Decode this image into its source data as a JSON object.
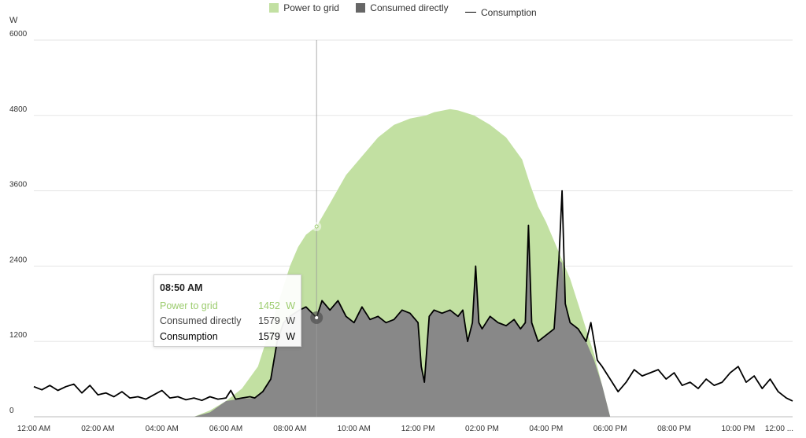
{
  "chart_data": {
    "type": "area",
    "ylabel": "W",
    "ylim": [
      0,
      6000
    ],
    "yticks": [
      0,
      1200,
      2400,
      3600,
      4800,
      6000
    ],
    "xticks": [
      "12:00 AM",
      "02:00 AM",
      "04:00 AM",
      "06:00 AM",
      "08:00 AM",
      "10:00 AM",
      "12:00 PM",
      "02:00 PM",
      "04:00 PM",
      "06:00 PM",
      "08:00 PM",
      "10:00 PM",
      "12:00 ..."
    ],
    "grid": "horizontal",
    "legend_position": "top-center",
    "legend": [
      {
        "label": "Power to grid",
        "kind": "area",
        "color": "#c2e0a2"
      },
      {
        "label": "Consumed directly",
        "kind": "area",
        "color": "#666666"
      },
      {
        "label": "Consumption",
        "kind": "line",
        "color": "#000000"
      }
    ],
    "x_hours_range": [
      0,
      23.7
    ],
    "series": [
      {
        "name": "Power to grid",
        "stacked_total": true,
        "points": [
          [
            5.0,
            0
          ],
          [
            5.5,
            100
          ],
          [
            6.0,
            250
          ],
          [
            6.5,
            450
          ],
          [
            7.0,
            800
          ],
          [
            7.25,
            1200
          ],
          [
            7.5,
            1600
          ],
          [
            7.75,
            2000
          ],
          [
            8.0,
            2400
          ],
          [
            8.25,
            2700
          ],
          [
            8.5,
            2900
          ],
          [
            8.83,
            3031
          ],
          [
            9.25,
            3400
          ],
          [
            9.75,
            3850
          ],
          [
            10.25,
            4150
          ],
          [
            10.75,
            4450
          ],
          [
            11.25,
            4650
          ],
          [
            11.75,
            4750
          ],
          [
            12.25,
            4800
          ],
          [
            12.5,
            4850
          ],
          [
            13.0,
            4900
          ],
          [
            13.25,
            4880
          ],
          [
            13.75,
            4800
          ],
          [
            14.25,
            4650
          ],
          [
            14.75,
            4450
          ],
          [
            15.25,
            4100
          ],
          [
            15.5,
            3700
          ],
          [
            15.75,
            3350
          ],
          [
            16.0,
            3100
          ],
          [
            16.25,
            2800
          ],
          [
            16.5,
            2500
          ],
          [
            16.75,
            2200
          ],
          [
            17.0,
            1800
          ],
          [
            17.25,
            1400
          ],
          [
            17.5,
            1000
          ],
          [
            17.75,
            500
          ],
          [
            18.0,
            0
          ]
        ]
      },
      {
        "name": "Consumed directly",
        "points": [
          [
            5.0,
            0
          ],
          [
            5.5,
            70
          ],
          [
            6.0,
            250
          ],
          [
            6.5,
            290
          ],
          [
            6.9,
            300
          ],
          [
            7.15,
            400
          ],
          [
            7.4,
            600
          ],
          [
            7.6,
            1200
          ],
          [
            7.8,
            1500
          ],
          [
            8.0,
            1600
          ],
          [
            8.3,
            1700
          ],
          [
            8.5,
            1750
          ],
          [
            8.83,
            1579
          ],
          [
            9.0,
            1850
          ],
          [
            9.25,
            1700
          ],
          [
            9.5,
            1850
          ],
          [
            9.75,
            1600
          ],
          [
            10.0,
            1500
          ],
          [
            10.25,
            1750
          ],
          [
            10.5,
            1550
          ],
          [
            10.75,
            1600
          ],
          [
            11.0,
            1500
          ],
          [
            11.25,
            1550
          ],
          [
            11.5,
            1700
          ],
          [
            11.75,
            1650
          ],
          [
            12.0,
            1500
          ],
          [
            12.1,
            800
          ],
          [
            12.2,
            550
          ],
          [
            12.35,
            1600
          ],
          [
            12.5,
            1700
          ],
          [
            12.75,
            1650
          ],
          [
            13.0,
            1700
          ],
          [
            13.25,
            1600
          ],
          [
            13.4,
            1700
          ],
          [
            13.55,
            1200
          ],
          [
            13.7,
            1500
          ],
          [
            13.8,
            2400
          ],
          [
            13.9,
            1500
          ],
          [
            14.0,
            1400
          ],
          [
            14.25,
            1600
          ],
          [
            14.5,
            1500
          ],
          [
            14.75,
            1450
          ],
          [
            15.0,
            1550
          ],
          [
            15.2,
            1400
          ],
          [
            15.35,
            1500
          ],
          [
            15.45,
            3050
          ],
          [
            15.55,
            1500
          ],
          [
            15.75,
            1200
          ],
          [
            16.0,
            1300
          ],
          [
            16.25,
            1400
          ],
          [
            16.4,
            2500
          ],
          [
            16.5,
            2450
          ],
          [
            16.6,
            1800
          ],
          [
            16.75,
            1500
          ],
          [
            17.0,
            1400
          ],
          [
            17.25,
            1200
          ],
          [
            17.5,
            900
          ],
          [
            17.75,
            500
          ],
          [
            18.0,
            0
          ]
        ]
      },
      {
        "name": "Consumption",
        "points": [
          [
            0,
            480
          ],
          [
            0.25,
            430
          ],
          [
            0.5,
            500
          ],
          [
            0.75,
            420
          ],
          [
            1.0,
            480
          ],
          [
            1.25,
            520
          ],
          [
            1.5,
            380
          ],
          [
            1.75,
            500
          ],
          [
            2.0,
            350
          ],
          [
            2.25,
            380
          ],
          [
            2.5,
            320
          ],
          [
            2.75,
            400
          ],
          [
            3.0,
            300
          ],
          [
            3.25,
            320
          ],
          [
            3.5,
            280
          ],
          [
            3.75,
            350
          ],
          [
            4.0,
            420
          ],
          [
            4.25,
            300
          ],
          [
            4.5,
            320
          ],
          [
            4.75,
            270
          ],
          [
            5.0,
            300
          ],
          [
            5.25,
            260
          ],
          [
            5.5,
            320
          ],
          [
            5.75,
            280
          ],
          [
            6.0,
            300
          ],
          [
            6.15,
            420
          ],
          [
            6.3,
            280
          ],
          [
            6.5,
            300
          ],
          [
            6.75,
            320
          ],
          [
            6.9,
            300
          ],
          [
            7.15,
            400
          ],
          [
            7.4,
            600
          ],
          [
            7.6,
            1200
          ],
          [
            7.8,
            1500
          ],
          [
            8.0,
            1600
          ],
          [
            8.3,
            1700
          ],
          [
            8.5,
            1750
          ],
          [
            8.83,
            1579
          ],
          [
            9.0,
            1850
          ],
          [
            9.25,
            1700
          ],
          [
            9.5,
            1850
          ],
          [
            9.75,
            1600
          ],
          [
            10.0,
            1500
          ],
          [
            10.25,
            1750
          ],
          [
            10.5,
            1550
          ],
          [
            10.75,
            1600
          ],
          [
            11.0,
            1500
          ],
          [
            11.25,
            1550
          ],
          [
            11.5,
            1700
          ],
          [
            11.75,
            1650
          ],
          [
            12.0,
            1500
          ],
          [
            12.1,
            800
          ],
          [
            12.2,
            550
          ],
          [
            12.35,
            1600
          ],
          [
            12.5,
            1700
          ],
          [
            12.75,
            1650
          ],
          [
            13.0,
            1700
          ],
          [
            13.25,
            1600
          ],
          [
            13.4,
            1700
          ],
          [
            13.55,
            1200
          ],
          [
            13.7,
            1500
          ],
          [
            13.8,
            2400
          ],
          [
            13.9,
            1500
          ],
          [
            14.0,
            1400
          ],
          [
            14.25,
            1600
          ],
          [
            14.5,
            1500
          ],
          [
            14.75,
            1450
          ],
          [
            15.0,
            1550
          ],
          [
            15.2,
            1400
          ],
          [
            15.35,
            1500
          ],
          [
            15.45,
            3050
          ],
          [
            15.55,
            1500
          ],
          [
            15.75,
            1200
          ],
          [
            16.0,
            1300
          ],
          [
            16.25,
            1400
          ],
          [
            16.4,
            2500
          ],
          [
            16.5,
            3600
          ],
          [
            16.6,
            1800
          ],
          [
            16.75,
            1500
          ],
          [
            17.0,
            1400
          ],
          [
            17.25,
            1200
          ],
          [
            17.4,
            1500
          ],
          [
            17.6,
            900
          ],
          [
            17.75,
            800
          ],
          [
            18.0,
            600
          ],
          [
            18.25,
            400
          ],
          [
            18.5,
            550
          ],
          [
            18.75,
            750
          ],
          [
            19.0,
            650
          ],
          [
            19.25,
            700
          ],
          [
            19.5,
            750
          ],
          [
            19.75,
            600
          ],
          [
            20.0,
            700
          ],
          [
            20.25,
            500
          ],
          [
            20.5,
            550
          ],
          [
            20.75,
            450
          ],
          [
            21.0,
            600
          ],
          [
            21.25,
            500
          ],
          [
            21.5,
            550
          ],
          [
            21.75,
            700
          ],
          [
            22.0,
            800
          ],
          [
            22.25,
            550
          ],
          [
            22.5,
            650
          ],
          [
            22.75,
            450
          ],
          [
            23.0,
            600
          ],
          [
            23.25,
            400
          ],
          [
            23.5,
            300
          ],
          [
            23.7,
            250
          ]
        ]
      }
    ],
    "hover": {
      "x_hour": 8.83,
      "time": "08:50 AM",
      "rows": [
        {
          "label": "Power to grid",
          "value": "1452",
          "unit": "W",
          "color": "#9ccc6e"
        },
        {
          "label": "Consumed directly",
          "value": "1579",
          "unit": "W",
          "color": "#444444"
        },
        {
          "label": "Consumption",
          "value": "1579",
          "unit": "W",
          "color": "#000000"
        }
      ]
    }
  }
}
